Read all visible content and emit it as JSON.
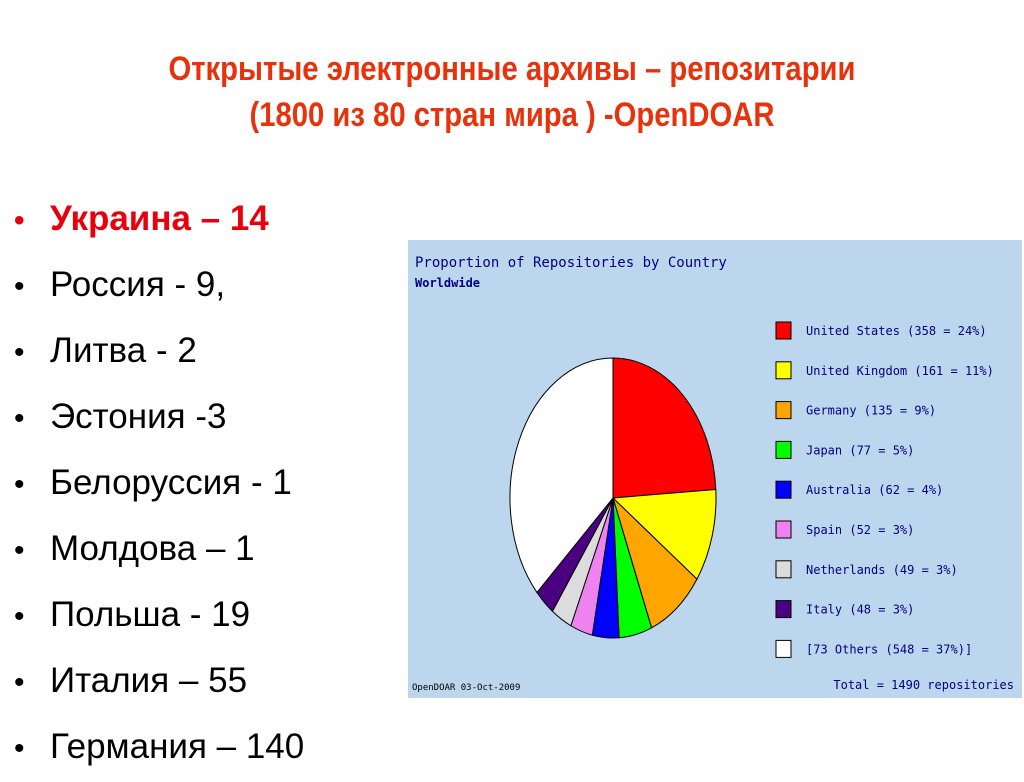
{
  "slide": {
    "title_line1": "Открытые электронные архивы – репозитарии",
    "title_line2": "(1800 из 80 стран мира ) -OpenDOAR",
    "bullets": [
      {
        "text": "Украина – 14",
        "highlight": true
      },
      {
        "text": "Россия - 9,",
        "highlight": false
      },
      {
        "text": "Литва - 2",
        "highlight": false
      },
      {
        "text": "Эстония -3",
        "highlight": false
      },
      {
        "text": "Белоруссия - 1",
        "highlight": false
      },
      {
        "text": "Молдова – 1",
        "highlight": false
      },
      {
        "text": "Польша - 19",
        "highlight": false
      },
      {
        "text": "Италия – 55",
        "highlight": false
      },
      {
        "text": "Германия – 140",
        "highlight": false
      }
    ],
    "bullet_glyph": "•",
    "highlight_color": "#e8000c",
    "title_color": "#e8320c"
  },
  "chart_data": {
    "type": "pie",
    "title": "Proportion of Repositories by Country",
    "subtitle": "Worldwide",
    "legend_placement": "right",
    "slices": [
      {
        "label": "United States (358 = 24%)",
        "value": 358,
        "color": "#ff0000"
      },
      {
        "label": "United Kingdom (161 = 11%)",
        "value": 161,
        "color": "#ffff00"
      },
      {
        "label": "Germany (135 = 9%)",
        "value": 135,
        "color": "#ffa500"
      },
      {
        "label": "Japan (77 = 5%)",
        "value": 77,
        "color": "#00ff00"
      },
      {
        "label": "Australia (62 = 4%)",
        "value": 62,
        "color": "#0000ff"
      },
      {
        "label": "Spain (52 = 3%)",
        "value": 52,
        "color": "#ee82ee"
      },
      {
        "label": "Netherlands (49 = 3%)",
        "value": 49,
        "color": "#dcdcdc"
      },
      {
        "label": "Italy (48 = 3%)",
        "value": 48,
        "color": "#4b0082"
      },
      {
        "label": "[73 Others (548 = 37%)]",
        "value": 548,
        "color": "#ffffff"
      }
    ],
    "footer_left": "OpenDOAR 03-Oct-2009",
    "footer_right": "Total = 1490 repositories"
  }
}
